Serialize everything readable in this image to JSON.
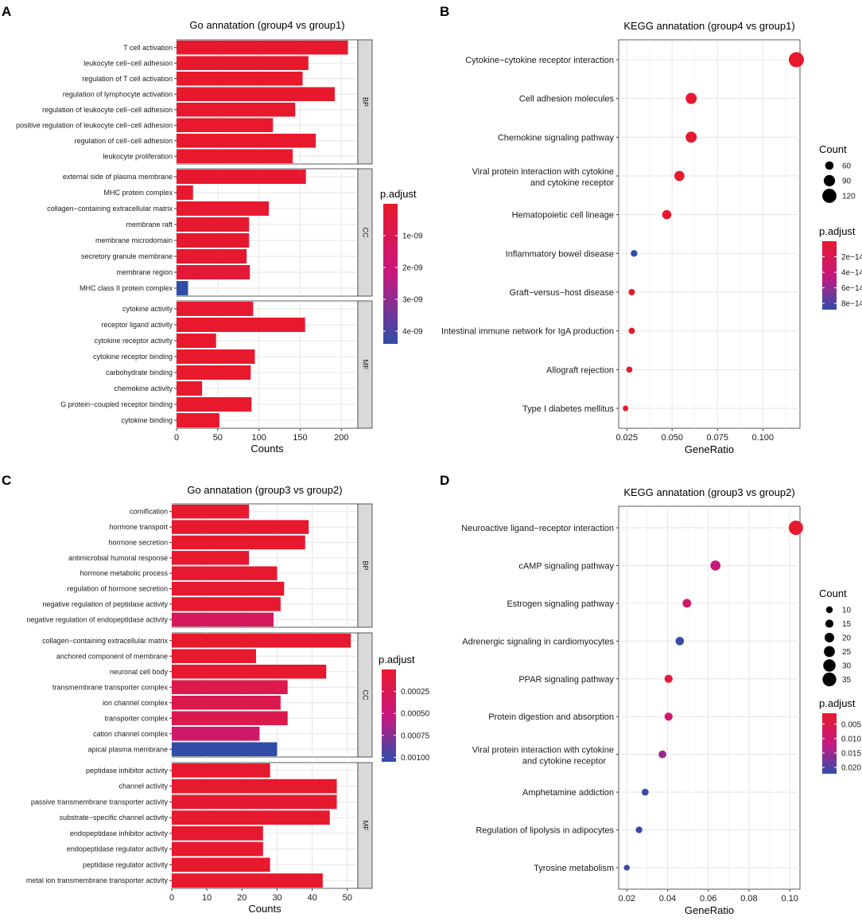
{
  "colors": {
    "low": "#e8192c",
    "mid": "#c8187f",
    "high": "#2f4da8",
    "grid": "#e6e6e6",
    "strip": "#d9d9d9"
  },
  "chart_data": [
    {
      "panel": "A",
      "type": "bar",
      "orientation": "horizontal",
      "title": "Go annatation (group4 vs group1)",
      "xlabel": "Counts",
      "xlim": [
        0,
        220
      ],
      "xticks": [
        0,
        50,
        100,
        150,
        200
      ],
      "legend": {
        "title": "p.adjust",
        "min": 0,
        "max": 4.4e-09,
        "ticks": [
          1e-09,
          2e-09,
          3e-09,
          4e-09
        ],
        "tick_labels": [
          "1e-09",
          "2e-09",
          "3e-09",
          "4e-09"
        ]
      },
      "facets": [
        {
          "name": "BP",
          "bars": [
            {
              "label": "T cell activation",
              "value": 208,
              "p": 2e-11
            },
            {
              "label": "leukocyte cell−cell adhesion",
              "value": 160,
              "p": 2e-11
            },
            {
              "label": "regulation of T cell activation",
              "value": 153,
              "p": 2e-11
            },
            {
              "label": "regulation of lymphocyte activation",
              "value": 192,
              "p": 2e-11
            },
            {
              "label": "regulation of leukocyte cell−cell adhesion",
              "value": 144,
              "p": 2e-11
            },
            {
              "label": "positive regulation of leukocyte cell−cell adhesion",
              "value": 117,
              "p": 2e-11
            },
            {
              "label": "regulation of cell−cell adhesion",
              "value": 169,
              "p": 2e-11
            },
            {
              "label": "leukocyte proliferation",
              "value": 141,
              "p": 2e-11
            }
          ]
        },
        {
          "name": "CC",
          "bars": [
            {
              "label": "external side of plasma membrane",
              "value": 157,
              "p": 1e-10
            },
            {
              "label": "MHC protein complex",
              "value": 20,
              "p": 2e-11
            },
            {
              "label": "collagen−containing extracellular matrix",
              "value": 112,
              "p": 1e-10
            },
            {
              "label": "membrane raft",
              "value": 88,
              "p": 1e-10
            },
            {
              "label": "membrane microdomain",
              "value": 88,
              "p": 1e-10
            },
            {
              "label": "secretory granule membrane",
              "value": 85,
              "p": 1e-10
            },
            {
              "label": "membrane region",
              "value": 89,
              "p": 3e-10
            },
            {
              "label": "MHC class II protein complex",
              "value": 14,
              "p": 4.4e-09
            }
          ]
        },
        {
          "name": "MF",
          "bars": [
            {
              "label": "cytokine activity",
              "value": 93,
              "p": 1e-10
            },
            {
              "label": "receptor ligand activity",
              "value": 156,
              "p": 2e-11
            },
            {
              "label": "cytokine receptor activity",
              "value": 48,
              "p": 2e-11
            },
            {
              "label": "cytokine receptor binding",
              "value": 95,
              "p": 2e-11
            },
            {
              "label": "carbohydrate binding",
              "value": 90,
              "p": 2e-11
            },
            {
              "label": "chemokine activity",
              "value": 31,
              "p": 2e-11
            },
            {
              "label": "G protein−coupled receptor binding",
              "value": 91,
              "p": 2e-11
            },
            {
              "label": "cytokine binding",
              "value": 52,
              "p": 2e-11
            }
          ]
        }
      ]
    },
    {
      "panel": "B",
      "type": "scatter",
      "title": "KEGG annatation (group4 vs group1)",
      "xlabel": "GeneRatio",
      "xlim": [
        0.0205,
        0.1205
      ],
      "xticks": [
        0.025,
        0.05,
        0.075,
        0.1
      ],
      "xtick_labels": [
        "0.025",
        "0.050",
        "0.075",
        "0.100"
      ],
      "size_legend": {
        "title": "Count",
        "values": [
          60,
          90,
          120
        ],
        "labels": [
          "60",
          "90",
          "120"
        ],
        "min": 30,
        "max": 130
      },
      "color_legend": {
        "title": "p.adjust",
        "min": 0,
        "max": 8.8e-14,
        "ticks": [
          2e-14,
          4e-14,
          6e-14,
          8e-14
        ],
        "tick_labels": [
          "2e−14",
          "4e−14",
          "6e−14",
          "8e−14"
        ]
      },
      "points": [
        {
          "label": "Cytokine−cytokine receptor interaction",
          "x": 0.1185,
          "count": 130,
          "p": 2e-16
        },
        {
          "label": "Cell adhesion molecules",
          "x": 0.0605,
          "count": 88,
          "p": 1e-15
        },
        {
          "label": "Chemokine signaling pathway",
          "x": 0.0605,
          "count": 88,
          "p": 1e-15
        },
        {
          "label": "Viral protein interaction with cytokine|and cytokine receptor",
          "x": 0.054,
          "count": 78,
          "p": 1e-15
        },
        {
          "label": "Hematopoietic cell lineage",
          "x": 0.047,
          "count": 68,
          "p": 1e-15
        },
        {
          "label": "Inflammatory bowel disease",
          "x": 0.029,
          "count": 42,
          "p": 8.8e-14
        },
        {
          "label": "Graft−versus−host disease",
          "x": 0.0277,
          "count": 38,
          "p": 1e-15
        },
        {
          "label": "Intestinal immune network for IgA production",
          "x": 0.0277,
          "count": 38,
          "p": 1e-15
        },
        {
          "label": "Allograft rejection",
          "x": 0.0264,
          "count": 35,
          "p": 1e-15
        },
        {
          "label": "Type I diabetes mellitus",
          "x": 0.0243,
          "count": 30,
          "p": 1e-15
        }
      ]
    },
    {
      "panel": "C",
      "type": "bar",
      "orientation": "horizontal",
      "title": "Go annatation (group3 vs group2)",
      "xlabel": "Counts",
      "xlim": [
        0,
        53
      ],
      "xticks": [
        0,
        10,
        20,
        30,
        40,
        50
      ],
      "legend": {
        "title": "p.adjust",
        "min": 0,
        "max": 0.00105,
        "ticks": [
          0.00025,
          0.0005,
          0.00075,
          0.001
        ],
        "tick_labels": [
          "0.00025",
          "0.00050",
          "0.00075",
          "0.00100"
        ]
      },
      "facets": [
        {
          "name": "BP",
          "bars": [
            {
              "label": "cornification",
              "value": 22,
              "p": 1e-05
            },
            {
              "label": "hormone transport",
              "value": 39,
              "p": 1e-05
            },
            {
              "label": "hormone secretion",
              "value": 38,
              "p": 1e-05
            },
            {
              "label": "antimicrobial humoral response",
              "value": 22,
              "p": 1e-05
            },
            {
              "label": "hormone metabolic process",
              "value": 30,
              "p": 1e-05
            },
            {
              "label": "regulation of hormone secretion",
              "value": 32,
              "p": 1e-05
            },
            {
              "label": "negative regulation of peptidase activity",
              "value": 31,
              "p": 1e-05
            },
            {
              "label": "negative regulation of endopeptidase activity",
              "value": 29,
              "p": 0.0003
            }
          ]
        },
        {
          "name": "CC",
          "bars": [
            {
              "label": "collagen−containing extracellular matrix",
              "value": 51,
              "p": 1e-05
            },
            {
              "label": "anchored component of membrane",
              "value": 24,
              "p": 1e-05
            },
            {
              "label": "neuronal cell body",
              "value": 44,
              "p": 1e-05
            },
            {
              "label": "transmembrane transporter complex",
              "value": 33,
              "p": 0.0002
            },
            {
              "label": "ion channel complex",
              "value": 31,
              "p": 0.0002
            },
            {
              "label": "transporter complex",
              "value": 33,
              "p": 0.0002
            },
            {
              "label": "cation channel complex",
              "value": 25,
              "p": 0.0004
            },
            {
              "label": "apical plasma membrane",
              "value": 30,
              "p": 0.00105
            }
          ]
        },
        {
          "name": "MF",
          "bars": [
            {
              "label": "peptidase inhibitor activity",
              "value": 28,
              "p": 1e-05
            },
            {
              "label": "channel activity",
              "value": 47,
              "p": 1e-05
            },
            {
              "label": "passive transmembrane transporter activity",
              "value": 47,
              "p": 1e-05
            },
            {
              "label": "substrate−specific channel activity",
              "value": 45,
              "p": 1e-05
            },
            {
              "label": "endopeptidase inhibitor activity",
              "value": 26,
              "p": 1e-05
            },
            {
              "label": "endopeptidase regulator activity",
              "value": 26,
              "p": 1e-05
            },
            {
              "label": "peptidase regulator activity",
              "value": 28,
              "p": 1e-05
            },
            {
              "label": "metal ion transmembrane transporter activity",
              "value": 43,
              "p": 1e-05
            }
          ]
        }
      ]
    },
    {
      "panel": "D",
      "type": "scatter",
      "title": "KEGG annatation (group3 vs group2)",
      "xlabel": "GeneRatio",
      "xlim": [
        0.016,
        0.105
      ],
      "xticks": [
        0.02,
        0.04,
        0.06,
        0.08,
        0.1
      ],
      "xtick_labels": [
        "0.02",
        "0.04",
        "0.06",
        "0.08",
        "0.10"
      ],
      "size_legend": {
        "title": "Count",
        "values": [
          10,
          15,
          20,
          25,
          30,
          35
        ],
        "labels": [
          "10",
          "15",
          "20",
          "25",
          "30",
          "35"
        ],
        "min": 6,
        "max": 37
      },
      "color_legend": {
        "title": "p.adjust",
        "min": 0.0012,
        "max": 0.0222,
        "ticks": [
          0.005,
          0.01,
          0.015,
          0.02
        ],
        "tick_labels": [
          "0.005",
          "0.010",
          "0.015",
          "0.020"
        ]
      },
      "points": [
        {
          "label": "Neuroactive ligand−receptor interaction",
          "x": 0.103,
          "count": 37,
          "p": 0.0015
        },
        {
          "label": "cAMP signaling pathway",
          "x": 0.0635,
          "count": 22,
          "p": 0.011
        },
        {
          "label": "Estrogen signaling pathway",
          "x": 0.0495,
          "count": 17,
          "p": 0.009
        },
        {
          "label": "Adrenergic signaling in cardiomyocytes",
          "x": 0.046,
          "count": 16,
          "p": 0.0215
        },
        {
          "label": "PPAR signaling pathway",
          "x": 0.0405,
          "count": 15,
          "p": 0.003
        },
        {
          "label": "Protein digestion and absorption",
          "x": 0.0405,
          "count": 15,
          "p": 0.009
        },
        {
          "label": "Viral protein interaction with cytokine|and cytokine receptor",
          "x": 0.0375,
          "count": 14,
          "p": 0.015
        },
        {
          "label": "Amphetamine addiction",
          "x": 0.029,
          "count": 11,
          "p": 0.0215
        },
        {
          "label": "Regulation of lipolysis in adipocytes",
          "x": 0.026,
          "count": 10,
          "p": 0.0215
        },
        {
          "label": "Tyrosine metabolism",
          "x": 0.02,
          "count": 7,
          "p": 0.0215
        }
      ]
    }
  ]
}
